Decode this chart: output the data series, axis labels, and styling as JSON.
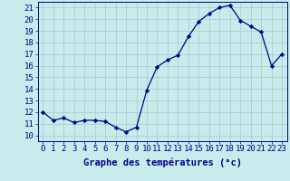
{
  "hours": [
    0,
    1,
    2,
    3,
    4,
    5,
    6,
    7,
    8,
    9,
    10,
    11,
    12,
    13,
    14,
    15,
    16,
    17,
    18,
    19,
    20,
    21,
    22,
    23
  ],
  "temps": [
    12.0,
    11.3,
    11.5,
    11.1,
    11.3,
    11.3,
    11.2,
    10.7,
    10.3,
    10.7,
    13.9,
    15.9,
    16.5,
    16.9,
    18.5,
    19.8,
    20.5,
    21.0,
    21.2,
    19.9,
    19.4,
    18.9,
    16.0,
    17.0
  ],
  "x_ticks": [
    0,
    1,
    2,
    3,
    4,
    5,
    6,
    7,
    8,
    9,
    10,
    11,
    12,
    13,
    14,
    15,
    16,
    17,
    18,
    19,
    20,
    21,
    22,
    23
  ],
  "y_ticks": [
    10,
    11,
    12,
    13,
    14,
    15,
    16,
    17,
    18,
    19,
    20,
    21
  ],
  "ylim": [
    9.5,
    21.5
  ],
  "xlim": [
    -0.5,
    23.5
  ],
  "xlabel": "Graphe des températures (°c)",
  "line_color": "#00008B",
  "marker_color": "#00008B",
  "bg_color": "#c8ecec",
  "grid_color": "#a0cccc",
  "xlabel_fontsize": 7.5,
  "tick_fontsize": 6.5
}
